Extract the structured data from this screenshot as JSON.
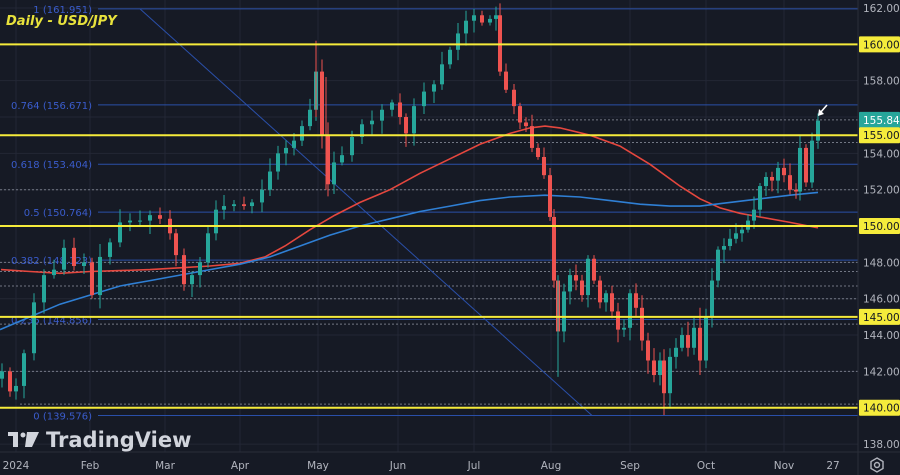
{
  "title": "Daily - USD/JPY",
  "logo_text": "TradingView",
  "colors": {
    "background": "#161a25",
    "grid": "#232735",
    "up": "#26a69a",
    "down": "#ef5350",
    "horizontal_levels": "#f5eb3b",
    "fib": "#2a4fa8",
    "fib_text": "#3a5ccc",
    "ma_red": "#e5473e",
    "ma_blue": "#2f7fd4",
    "last_price_bg": "#26a69a",
    "axis_text": "#b2b5be"
  },
  "price_axis": {
    "ticks": [
      "162.000",
      "160.000",
      "158.000",
      "156.000",
      "155.842",
      "155.000",
      "154.000",
      "152.000",
      "150.000",
      "148.000",
      "146.000",
      "145.000",
      "144.000",
      "142.000",
      "140.000",
      "138.000"
    ]
  },
  "time_axis": {
    "ticks": [
      "2024",
      "Feb",
      "Mar",
      "Apr",
      "May",
      "Jun",
      "Jul",
      "Aug",
      "Sep",
      "Oct",
      "Nov",
      "27"
    ]
  },
  "chart_data": {
    "type": "candlestick",
    "title": "Daily - USD/JPY",
    "xlabel": "",
    "ylabel": "",
    "ylim": [
      138,
      162
    ],
    "x_ticks": [
      "2024",
      "Feb",
      "Mar",
      "Apr",
      "May",
      "Jun",
      "Jul",
      "Aug",
      "Sep",
      "Oct",
      "Nov",
      "27"
    ],
    "y_ticks": [
      138,
      140,
      142,
      144,
      146,
      148,
      150,
      152,
      154,
      156,
      158,
      160,
      162
    ],
    "last_price": 155.842,
    "horizontal_levels": [
      160.0,
      155.0,
      150.0,
      145.0,
      140.0
    ],
    "fibonacci_levels": [
      {
        "ratio": "1",
        "price": 161.951,
        "label": "1 (161.951)"
      },
      {
        "ratio": "0.764",
        "price": 156.671,
        "label": "0.764 (156.671)"
      },
      {
        "ratio": "0.618",
        "price": 153.404,
        "label": "0.618 (153.404)"
      },
      {
        "ratio": "0.5",
        "price": 150.764,
        "label": "0.5 (150.764)"
      },
      {
        "ratio": "0.382",
        "price": 148.123,
        "label": "0.382 (148.123)"
      },
      {
        "ratio": "0.236",
        "price": 144.856,
        "label": "0.236 (144.856)"
      },
      {
        "ratio": "0",
        "price": 139.576,
        "label": "0 (139.576)"
      }
    ],
    "dotted_levels": [
      155.842,
      154.6,
      152.0,
      148.0,
      147.5,
      146.7,
      146.0,
      144.6,
      142.0,
      140.2
    ],
    "moving_averages": [
      {
        "name": "red MA",
        "color": "#e5473e",
        "points": [
          [
            1,
            147.6
          ],
          [
            30,
            147.5
          ],
          [
            60,
            147.4
          ],
          [
            90,
            147.5
          ],
          [
            120,
            147.55
          ],
          [
            150,
            147.6
          ],
          [
            180,
            147.7
          ],
          [
            210,
            147.8
          ],
          [
            240,
            147.95
          ],
          [
            265,
            148.3
          ],
          [
            285,
            148.9
          ],
          [
            310,
            149.8
          ],
          [
            335,
            150.6
          ],
          [
            360,
            151.3
          ],
          [
            390,
            152.0
          ],
          [
            420,
            152.9
          ],
          [
            450,
            153.7
          ],
          [
            480,
            154.5
          ],
          [
            510,
            155.1
          ],
          [
            530,
            155.4
          ],
          [
            545,
            155.5
          ],
          [
            560,
            155.4
          ],
          [
            590,
            155.0
          ],
          [
            620,
            154.4
          ],
          [
            650,
            153.4
          ],
          [
            680,
            152.2
          ],
          [
            700,
            151.5
          ],
          [
            720,
            151.0
          ],
          [
            740,
            150.7
          ],
          [
            760,
            150.5
          ],
          [
            790,
            150.2
          ],
          [
            818,
            149.9
          ]
        ]
      },
      {
        "name": "blue MA",
        "color": "#2f7fd4",
        "points": [
          [
            0,
            144.3
          ],
          [
            30,
            145.0
          ],
          [
            60,
            145.7
          ],
          [
            90,
            146.2
          ],
          [
            120,
            146.7
          ],
          [
            150,
            147.0
          ],
          [
            180,
            147.3
          ],
          [
            210,
            147.6
          ],
          [
            240,
            147.9
          ],
          [
            270,
            148.3
          ],
          [
            300,
            148.9
          ],
          [
            330,
            149.5
          ],
          [
            360,
            150.0
          ],
          [
            390,
            150.4
          ],
          [
            420,
            150.8
          ],
          [
            450,
            151.1
          ],
          [
            480,
            151.4
          ],
          [
            510,
            151.6
          ],
          [
            545,
            151.7
          ],
          [
            580,
            151.6
          ],
          [
            610,
            151.4
          ],
          [
            640,
            151.2
          ],
          [
            670,
            151.1
          ],
          [
            700,
            151.1
          ],
          [
            730,
            151.3
          ],
          [
            760,
            151.5
          ],
          [
            790,
            151.7
          ],
          [
            818,
            151.85
          ]
        ]
      }
    ],
    "trendline": {
      "from": [
        140,
        161.95
      ],
      "to": [
        592,
        139.576
      ]
    },
    "candles_note": "Daily OHLC, approx: Jan start ~141, rallies to ~150.8 mid-Feb, dip ~146.5 mid-Mar, ~151.5 Apr, spike 160.2 late Apr, drop ~152 early May, climb to 161.95 early Jul, collapse to ~141.7 early Aug, ~147-149 mid Aug, low ~139.6 mid Sep, rally to ~150 mid Oct, ~153.8 late Oct, ~152 early Nov, last 155.842"
  }
}
